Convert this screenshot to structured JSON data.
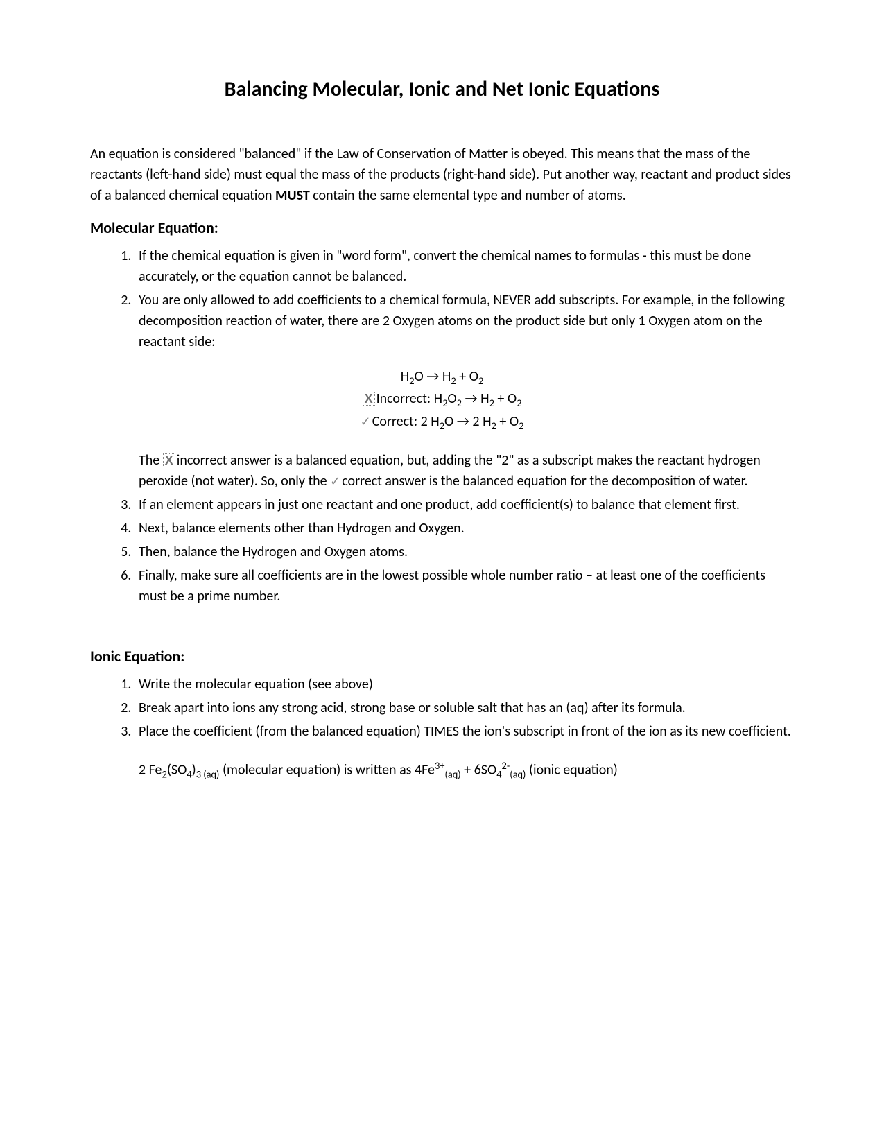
{
  "title": "Balancing Molecular, Ionic and Net Ionic Equations",
  "intro_before": "An equation is considered \"balanced\" if the Law of Conservation of Matter is obeyed.  This means that the mass of the reactants (left-hand side) must equal the mass of the products (right-hand side).  Put another way, reactant and product sides of a balanced chemical equation ",
  "intro_bold": "MUST",
  "intro_after": " contain the same elemental type and number of atoms.",
  "molecular_heading": "Molecular Equation:",
  "mol_item1": "If the chemical equation is given in \"word form\", convert the chemical names to formulas - this must be done accurately, or the equation cannot be balanced.",
  "mol_item2": "You are only allowed to add coefficients to a chemical formula, NEVER add subscripts.  For example, in the following decomposition reaction of water, there are 2 Oxygen atoms on the product side but only 1 Oxygen atom on the reactant side:",
  "incorrect_label": "Incorrect:  ",
  "correct_label": "Correct:  ",
  "sub_para_before": "The ",
  "sub_para_mid1": "incorrect answer is a balanced equation, but, adding the \"2\" as a subscript makes the reactant hydrogen peroxide (not water).  So, only the ",
  "sub_para_mid2": "correct answer is the balanced equation for the decomposition of water.",
  "mol_item3": "If an element appears in just one reactant and one product, add coefficient(s) to balance that element first.",
  "mol_item4": "Next, balance elements other than Hydrogen and Oxygen.",
  "mol_item5": "Then, balance the Hydrogen and Oxygen atoms.",
  "mol_item6": "Finally, make sure all coefficients are in the lowest possible whole number ratio – at least one of the coefficients must be a prime number.",
  "ionic_heading": "Ionic Equation:",
  "ion_item1": "Write the molecular equation (see above)",
  "ion_item2": "Break apart into ions any strong acid, strong base or soluble salt that has an (aq) after its formula.",
  "ion_item3": "Place the coefficient (from the balanced equation) TIMES the ion's subscript in front of the ion as its new coefficient."
}
